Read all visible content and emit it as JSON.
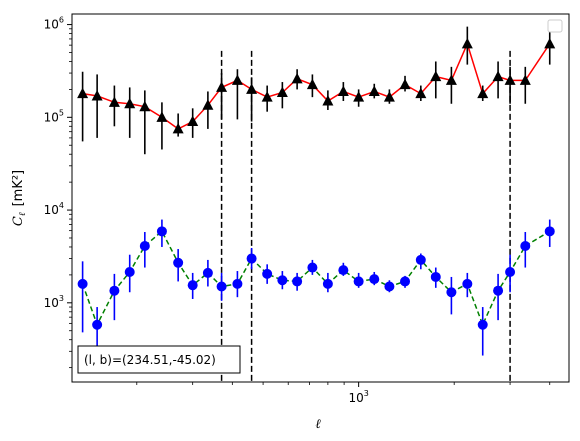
{
  "chart_data": {
    "type": "scatter",
    "xscale": "log",
    "yscale": "log",
    "xlim": [
      125,
      4600
    ],
    "ylim": [
      140,
      1300000
    ],
    "xlabel": "ℓ",
    "ylabel_main": "C",
    "ylabel_sub": "ℓ",
    "ylabel_unit": "[mK²]",
    "xticks": [
      {
        "value": 1000,
        "base": "10",
        "exp": "3"
      }
    ],
    "yticks": [
      {
        "value": 1000,
        "base": "10",
        "exp": "3"
      },
      {
        "value": 10000,
        "base": "10",
        "exp": "4"
      },
      {
        "value": 100000,
        "base": "10",
        "exp": "5"
      },
      {
        "value": 1000000,
        "base": "10",
        "exp": "6"
      }
    ],
    "vlines": [
      370,
      460,
      3000
    ],
    "legend": "top-right (empty)",
    "annotation": "(l, b)=(234.51,-45.02)",
    "series": [
      {
        "color": "#ff0000",
        "marker_color": "#000000",
        "marker": "triangle",
        "linestyle": "solid",
        "x": [
          135,
          150,
          170,
          190,
          212,
          240,
          270,
          300,
          335,
          370,
          415,
          460,
          515,
          575,
          640,
          715,
          800,
          895,
          1000,
          1120,
          1250,
          1400,
          1570,
          1750,
          1960,
          2200,
          2460,
          2750,
          3000,
          3350,
          4000
        ],
        "y": [
          180000,
          170000,
          145000,
          140000,
          130000,
          100000,
          75000,
          90000,
          135000,
          210000,
          250000,
          200000,
          165000,
          185000,
          260000,
          225000,
          150000,
          190000,
          165000,
          190000,
          165000,
          225000,
          180000,
          275000,
          250000,
          620000,
          180000,
          275000,
          250000,
          250000,
          620000
        ],
        "err_low": [
          55000,
          60000,
          80000,
          60000,
          40000,
          45000,
          62000,
          60000,
          75000,
          95000,
          95000,
          90000,
          115000,
          125000,
          200000,
          165000,
          120000,
          150000,
          130000,
          160000,
          140000,
          190000,
          150000,
          160000,
          140000,
          370000,
          150000,
          160000,
          140000,
          140000,
          370000
        ],
        "err_high": [
          310000,
          290000,
          220000,
          210000,
          195000,
          145000,
          110000,
          125000,
          190000,
          300000,
          330000,
          270000,
          220000,
          240000,
          330000,
          290000,
          195000,
          240000,
          200000,
          230000,
          200000,
          280000,
          220000,
          400000,
          350000,
          950000,
          220000,
          400000,
          350000,
          350000,
          950000
        ]
      },
      {
        "color": "#008000",
        "marker_color": "#0000ff",
        "marker": "circle",
        "linestyle": "dashed",
        "x": [
          135,
          150,
          170,
          190,
          212,
          240,
          270,
          300,
          335,
          370,
          415,
          460,
          515,
          575,
          640,
          715,
          800,
          895,
          1000,
          1120,
          1250,
          1400,
          1570,
          1750,
          1960,
          2200,
          2460,
          2750,
          3000,
          3350,
          4000
        ],
        "y": [
          1600,
          580,
          1350,
          2150,
          4100,
          5900,
          2700,
          1550,
          2100,
          1500,
          1600,
          3000,
          2050,
          1750,
          1700,
          2400,
          1600,
          2250,
          1700,
          1800,
          1500,
          1700,
          2900,
          1900,
          1300,
          1600,
          580,
          1350,
          2150,
          4100,
          5900
        ],
        "err_low": [
          480,
          270,
          650,
          1300,
          2400,
          4000,
          1700,
          1100,
          1500,
          1050,
          1150,
          2300,
          1600,
          1400,
          1350,
          2000,
          1300,
          1950,
          1450,
          1550,
          1300,
          1450,
          2300,
          1450,
          750,
          1150,
          270,
          650,
          1300,
          2400,
          4000
        ],
        "err_high": [
          2800,
          900,
          2050,
          3300,
          5800,
          7900,
          3800,
          2100,
          2900,
          2100,
          2200,
          3900,
          2600,
          2200,
          2100,
          2900,
          2100,
          2700,
          2100,
          2150,
          1750,
          1950,
          3400,
          2400,
          1900,
          2100,
          900,
          2050,
          3300,
          5800,
          7900
        ]
      }
    ]
  }
}
